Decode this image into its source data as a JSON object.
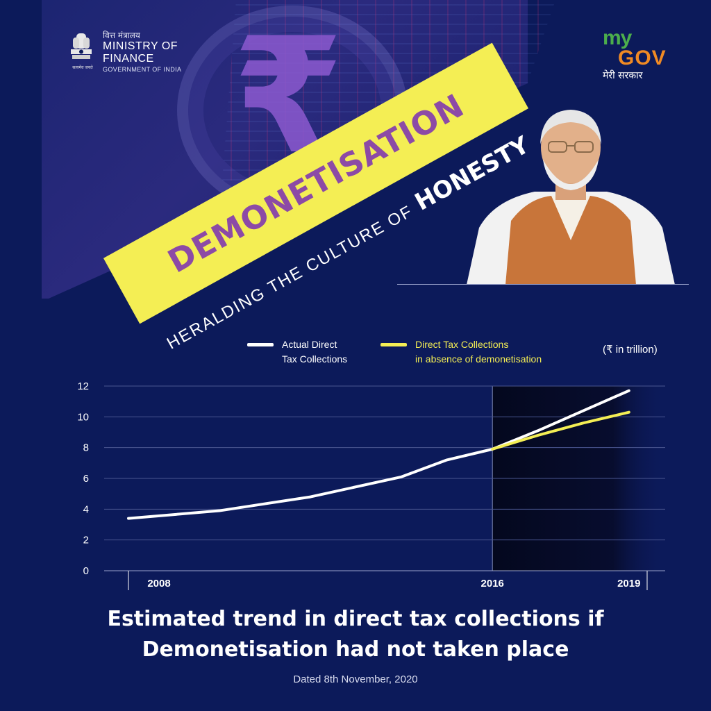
{
  "header": {
    "ministry_hindi": "वित्त मंत्रालय",
    "ministry_line1": "MINISTRY OF",
    "ministry_line2": "FINANCE",
    "ministry_line3": "GOVERNMENT OF INDIA",
    "emblem_caption": "सत्यमेव जयते",
    "mygov_my": "my",
    "mygov_gov": "GOV",
    "mygov_hindi": "मेरी सरकार"
  },
  "banner": {
    "headline": "DEMONETISATION",
    "tagline_light": "HERALDING THE CULTURE OF",
    "tagline_bold": "HONESTY"
  },
  "colors": {
    "background": "#0c1a5a",
    "banner_yellow": "#f4ee54",
    "headline_purple": "#8c4aa6",
    "actual_line": "#ffffff",
    "counterfactual_line": "#f4ee54"
  },
  "chart_data": {
    "type": "line",
    "unit_label": "(₹ in trillion)",
    "x_tick_labels": [
      "2008",
      "2016",
      "2019"
    ],
    "y_ticks": [
      0,
      2,
      4,
      6,
      8,
      10,
      12
    ],
    "ylim": [
      0,
      12
    ],
    "xlim": [
      2008,
      2019.4
    ],
    "grid": true,
    "legend_position": "top",
    "shaded_region_from": 2016,
    "series": [
      {
        "name": "Actual Direct Tax Collections",
        "color": "#ffffff",
        "x": [
          2008,
          2010,
          2012,
          2014,
          2015,
          2016,
          2017,
          2018,
          2019
        ],
        "y": [
          3.4,
          3.9,
          4.8,
          6.1,
          7.2,
          7.9,
          9.1,
          10.4,
          11.7
        ]
      },
      {
        "name": "Direct Tax Collections in absence of demonetisation",
        "color": "#f4ee54",
        "x": [
          2016,
          2017,
          2018,
          2019
        ],
        "y": [
          7.9,
          8.8,
          9.6,
          10.3
        ]
      }
    ],
    "legend": {
      "actual_line1": "Actual Direct",
      "actual_line2": "Tax Collections",
      "counter_line1": "Direct Tax Collections",
      "counter_line2": "in absence of demonetisation"
    }
  },
  "footer": {
    "title_line1": "Estimated trend in direct tax collections if",
    "title_line2": "Demonetisation had not taken place",
    "date": "Dated 8th November, 2020"
  }
}
